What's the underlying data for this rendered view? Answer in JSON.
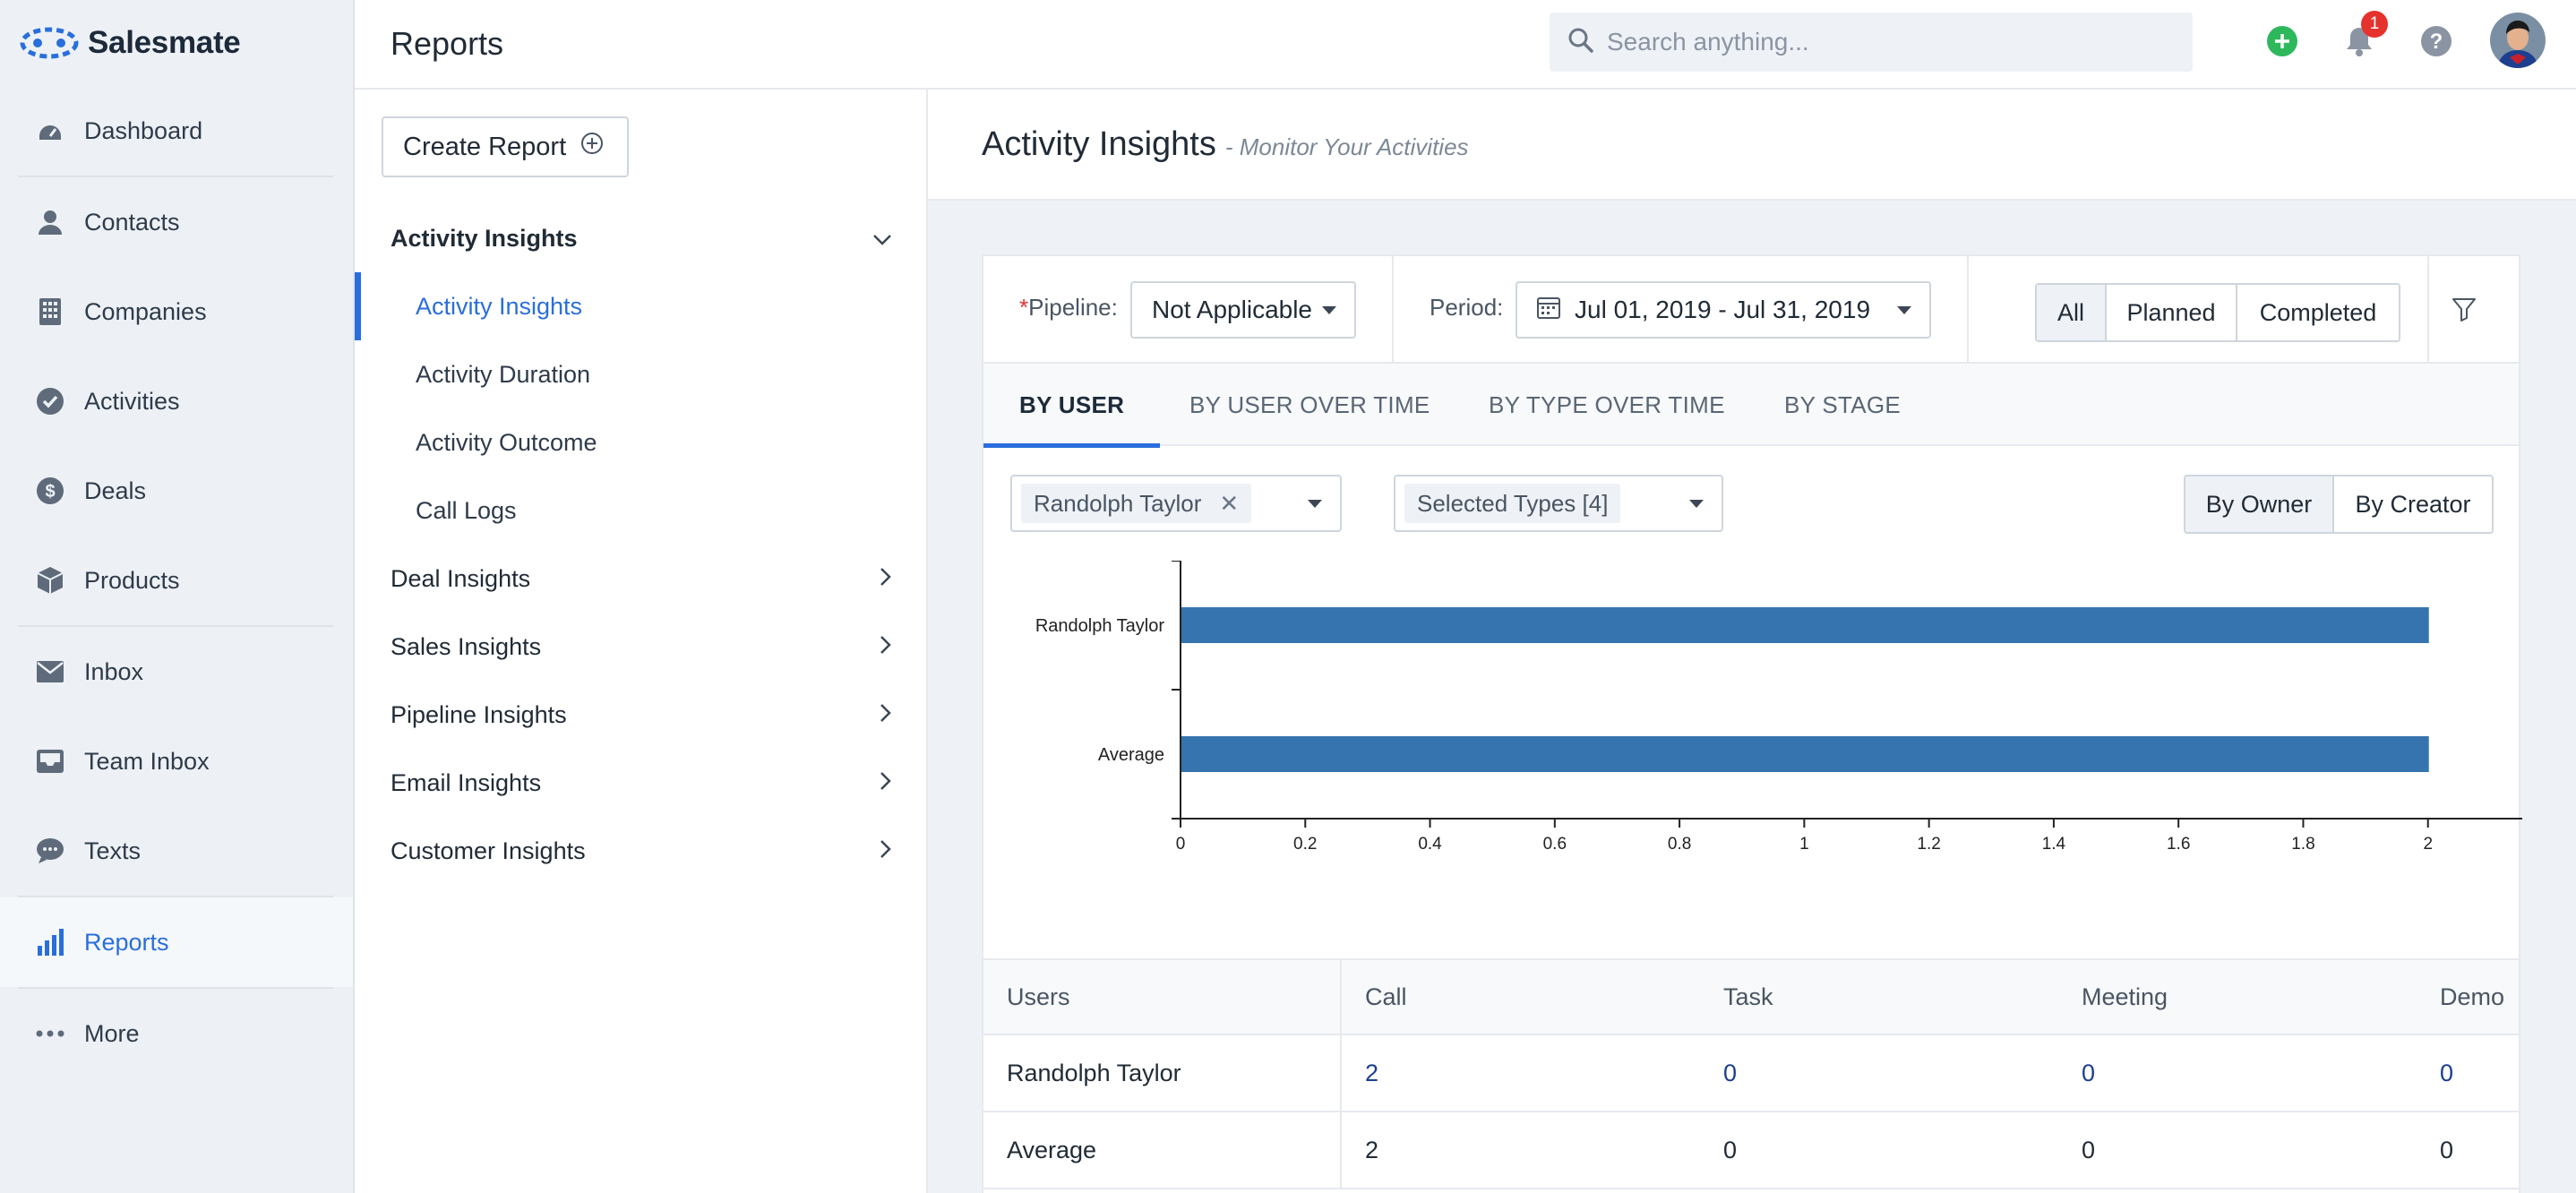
{
  "app": {
    "brand": "Salesmate"
  },
  "nav": {
    "items": [
      {
        "label": "Dashboard",
        "icon": "dashboard-icon"
      },
      {
        "label": "Contacts",
        "icon": "contacts-icon"
      },
      {
        "label": "Companies",
        "icon": "companies-icon"
      },
      {
        "label": "Activities",
        "icon": "activities-icon"
      },
      {
        "label": "Deals",
        "icon": "deals-icon"
      },
      {
        "label": "Products",
        "icon": "products-icon"
      },
      {
        "label": "Inbox",
        "icon": "inbox-icon"
      },
      {
        "label": "Team Inbox",
        "icon": "team-inbox-icon"
      },
      {
        "label": "Texts",
        "icon": "texts-icon"
      },
      {
        "label": "Reports",
        "icon": "reports-icon",
        "active": true
      },
      {
        "label": "More",
        "icon": "more-icon"
      }
    ]
  },
  "header": {
    "title": "Reports",
    "search_placeholder": "Search anything...",
    "notification_count": "1"
  },
  "reports_sidebar": {
    "create_label": "Create Report",
    "open_group": "Activity Insights",
    "sub_items": [
      "Activity Insights",
      "Activity Duration",
      "Activity Outcome",
      "Call Logs"
    ],
    "groups": [
      "Deal Insights",
      "Sales Insights",
      "Pipeline Insights",
      "Email Insights",
      "Customer Insights"
    ]
  },
  "main": {
    "title": "Activity Insights",
    "subtitle": "- Monitor Your Activities",
    "filters": {
      "pipeline_label": "Pipeline:",
      "pipeline_required": "*",
      "pipeline_value": "Not Applicable",
      "period_label": "Period:",
      "period_value": "Jul 01, 2019 - Jul 31, 2019",
      "status_options": [
        "All",
        "Planned",
        "Completed"
      ],
      "status_selected": "All"
    },
    "tabs": [
      "BY USER",
      "BY USER OVER TIME",
      "BY TYPE OVER TIME",
      "BY STAGE"
    ],
    "active_tab": "BY USER",
    "user_filter": "Randolph Taylor",
    "types_filter": "Selected Types [4]",
    "owner_toggle": [
      "By Owner",
      "By Creator"
    ],
    "owner_selected": "By Owner"
  },
  "chart_data": {
    "type": "bar",
    "orientation": "horizontal",
    "categories": [
      "Randolph Taylor",
      "Average"
    ],
    "values": [
      2,
      2
    ],
    "xlim": [
      0,
      2.2
    ],
    "x_ticks": [
      "0",
      "0.2",
      "0.4",
      "0.6",
      "0.8",
      "1",
      "1.2",
      "1.4",
      "1.6",
      "1.8",
      "2",
      "2"
    ],
    "color": "#3574ae",
    "title": "",
    "xlabel": "",
    "ylabel": ""
  },
  "table": {
    "columns": [
      "Users",
      "Call",
      "Task",
      "Meeting",
      "Demo"
    ],
    "rows": [
      [
        "Randolph Taylor",
        "2",
        "0",
        "0",
        "0"
      ],
      [
        "Average",
        "2",
        "0",
        "0",
        "0"
      ]
    ]
  }
}
